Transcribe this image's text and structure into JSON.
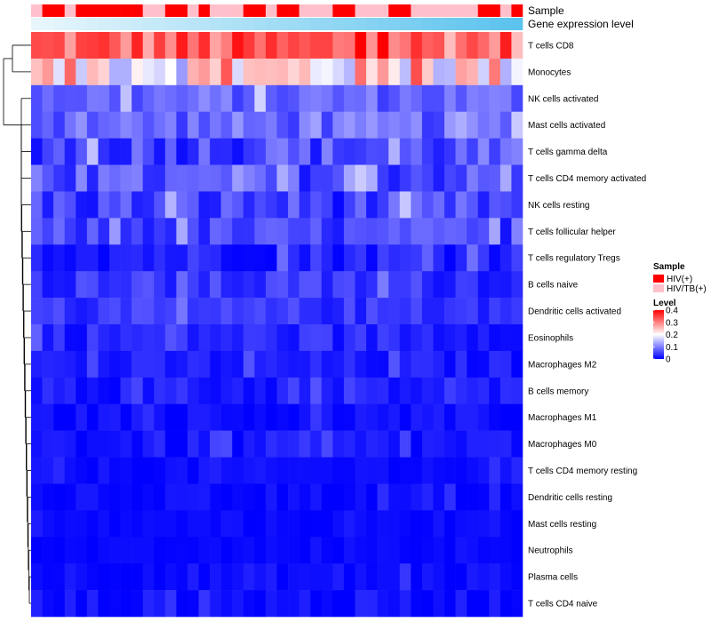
{
  "chart_data": {
    "type": "heatmap",
    "title": "",
    "rows": [
      "T cells CD8",
      "Monocytes",
      "NK cells activated",
      "Mast cells activated",
      "T cells gamma delta",
      "T cells CD4 memory activated",
      "NK cells resting",
      "T cells follicular helper",
      "T cells regulatory  Tregs",
      "B cells naive",
      "Dendritic cells activated",
      "Eosinophils",
      "Macrophages M2",
      "B cells memory",
      "Macrophages M1",
      "Macrophages M0",
      "T cells CD4 memory resting",
      "Dendritic cells resting",
      "Mast cells resting",
      "Neutrophils",
      "Plasma cells",
      "T cells CD4 naive"
    ],
    "n_columns": 44,
    "row_means": [
      0.32,
      0.22,
      0.08,
      0.08,
      0.06,
      0.06,
      0.05,
      0.05,
      0.03,
      0.04,
      0.04,
      0.03,
      0.02,
      0.02,
      0.01,
      0.015,
      0.008,
      0.008,
      0.006,
      0.004,
      0.01,
      0.01
    ],
    "row_spreads": [
      0.07,
      0.1,
      0.035,
      0.04,
      0.05,
      0.045,
      0.045,
      0.035,
      0.03,
      0.03,
      0.025,
      0.025,
      0.02,
      0.02,
      0.015,
      0.02,
      0.012,
      0.012,
      0.008,
      0.006,
      0.015,
      0.02
    ],
    "annotations": {
      "sample_label": "Sample",
      "expression_label": "Gene expression level",
      "sample_values": [
        "HIV/TB(+)",
        "HIV(+)",
        "HIV(+)",
        "HIV/TB(+)",
        "HIV(+)",
        "HIV(+)",
        "HIV(+)",
        "HIV(+)",
        "HIV(+)",
        "HIV(+)",
        "HIV/TB(+)",
        "HIV/TB(+)",
        "HIV(+)",
        "HIV(+)",
        "HIV/TB(+)",
        "HIV(+)",
        "HIV/TB(+)",
        "HIV/TB(+)",
        "HIV/TB(+)",
        "HIV(+)",
        "HIV(+)",
        "HIV/TB(+)",
        "HIV(+)",
        "HIV(+)",
        "HIV/TB(+)",
        "HIV/TB(+)",
        "HIV/TB(+)",
        "HIV(+)",
        "HIV(+)",
        "HIV/TB(+)",
        "HIV/TB(+)",
        "HIV/TB(+)",
        "HIV(+)",
        "HIV(+)",
        "HIV/TB(+)",
        "HIV/TB(+)",
        "HIV/TB(+)",
        "HIV/TB(+)",
        "HIV/TB(+)",
        "HIV/TB(+)",
        "HIV(+)",
        "HIV(+)",
        "HIV/TB(+)",
        "HIV(+)"
      ]
    },
    "legend": {
      "sample": {
        "title": "Sample",
        "entries": [
          {
            "label": "HIV(+)",
            "color": "#ff0000"
          },
          {
            "label": "HIV/TB(+)",
            "color": "#ffc0cb"
          }
        ]
      },
      "level": {
        "title": "Level",
        "ticks": [
          "0.4",
          "0.3",
          "0.2",
          "0.1",
          "0"
        ],
        "tick_values": [
          0.4,
          0.3,
          0.2,
          0.1,
          0
        ],
        "range": [
          0,
          0.4
        ]
      }
    },
    "colors": {
      "low": "#0000ff",
      "mid": "#ffffff",
      "high": "#ff0000",
      "hiv": "#ff0000",
      "hivtb": "#ffc0cb",
      "expr_start": "#e8f6fc",
      "expr_end": "#5bc3ee",
      "dendrogram": "#000000"
    }
  }
}
